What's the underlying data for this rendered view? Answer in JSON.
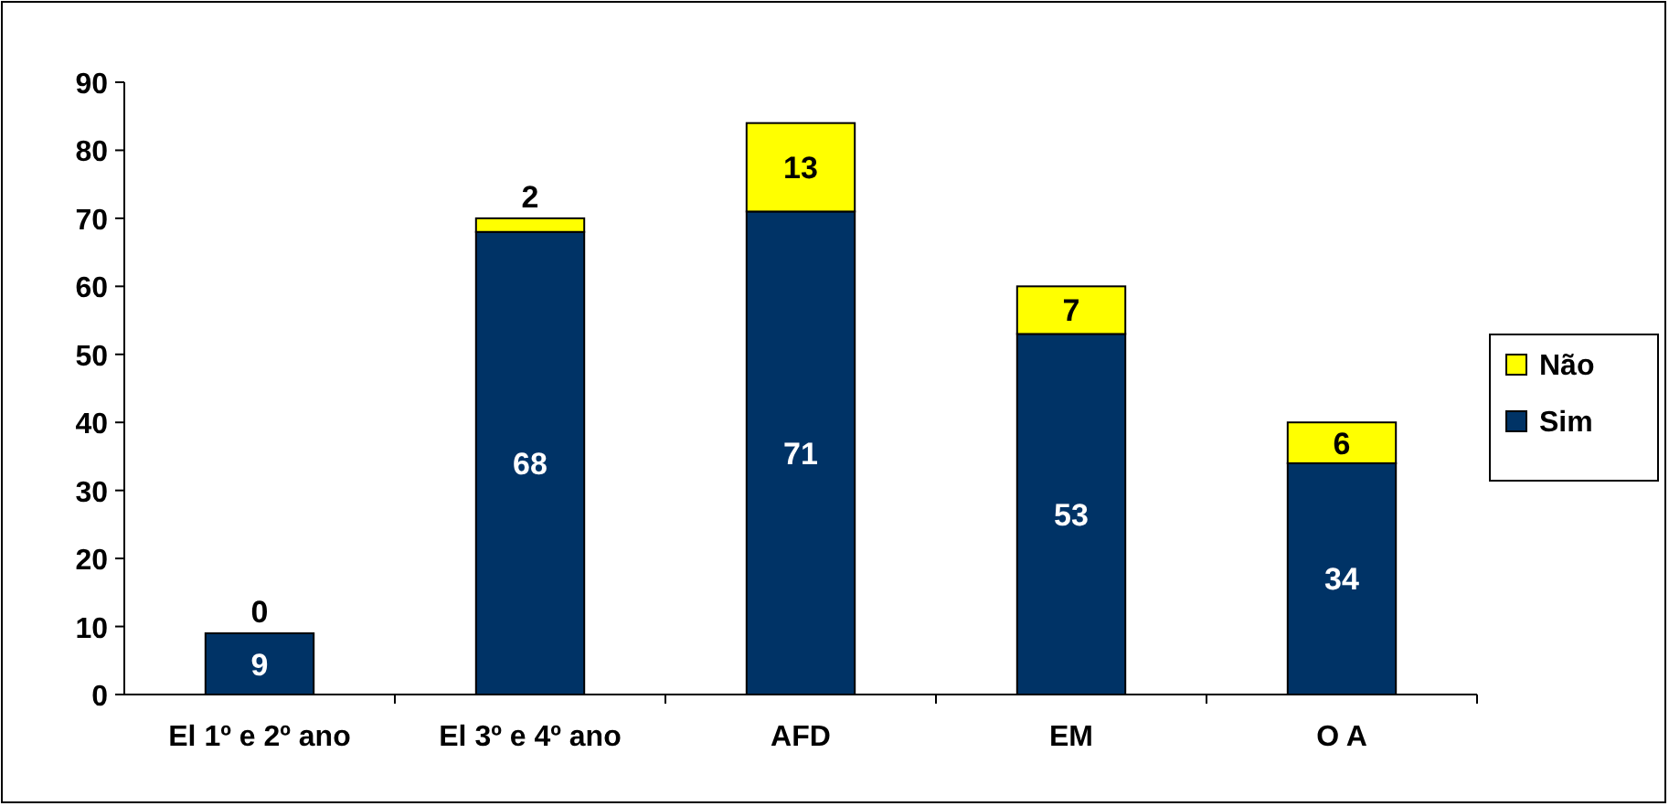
{
  "chart_data": {
    "type": "bar",
    "stacked": true,
    "categories": [
      "El 1º e 2º ano",
      "El 3º e 4º ano",
      "AFD",
      "EM",
      "O A"
    ],
    "series": [
      {
        "name": "Sim",
        "color": "#003366",
        "values": [
          9,
          68,
          71,
          53,
          34
        ]
      },
      {
        "name": "Não",
        "color": "#ffff00",
        "values": [
          0,
          2,
          13,
          7,
          6
        ]
      }
    ],
    "ylim": [
      0,
      90
    ],
    "yticks": [
      0,
      10,
      20,
      30,
      40,
      50,
      60,
      70,
      80,
      90
    ],
    "data_labels": true,
    "legend": "right",
    "grid": false
  }
}
